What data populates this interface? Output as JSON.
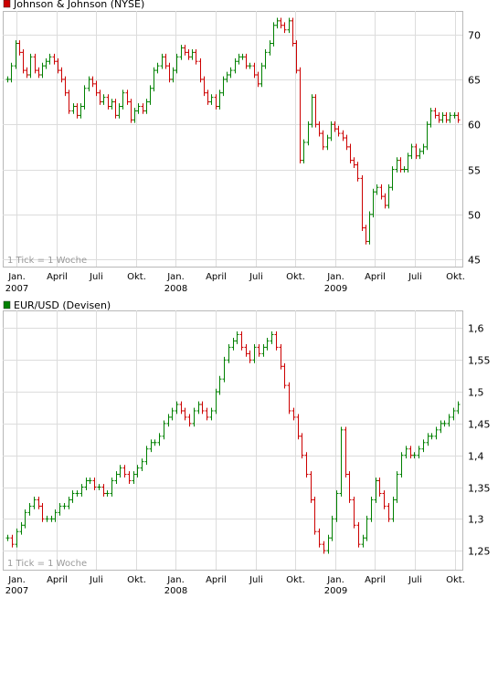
{
  "chart_data": [
    {
      "type": "ohlc",
      "title": "Johnson & Johnson (NYSE)",
      "legend_color": "#cc0000",
      "note": "1 Tick = 1 Woche",
      "y_ticks": [
        45,
        50,
        55,
        60,
        65,
        70
      ],
      "y_tick_labels": [
        "45",
        "50",
        "55",
        "60",
        "65",
        "70"
      ],
      "ylim": [
        44.2,
        72.6
      ],
      "x_ticks": [
        {
          "label": "Jan.",
          "year": "2007"
        },
        {
          "label": "April",
          "year": ""
        },
        {
          "label": "Juli",
          "year": ""
        },
        {
          "label": "Okt.",
          "year": ""
        },
        {
          "label": "Jan.",
          "year": "2008"
        },
        {
          "label": "April",
          "year": ""
        },
        {
          "label": "Juli",
          "year": ""
        },
        {
          "label": "Okt.",
          "year": ""
        },
        {
          "label": "Jan.",
          "year": "2009"
        },
        {
          "label": "April",
          "year": ""
        },
        {
          "label": "Juli",
          "year": ""
        },
        {
          "label": "Okt.",
          "year": ""
        }
      ],
      "up_color": "#008000",
      "down_color": "#cc0000",
      "series_close": [
        65.0,
        66.5,
        69.0,
        68.0,
        66.0,
        65.5,
        67.5,
        66.0,
        65.5,
        66.5,
        67.0,
        67.5,
        67.0,
        66.0,
        65.0,
        63.5,
        61.5,
        62.0,
        61.0,
        62.0,
        64.0,
        65.0,
        64.5,
        63.5,
        62.5,
        63.0,
        62.0,
        62.5,
        61.0,
        62.0,
        63.5,
        62.5,
        60.5,
        61.5,
        62.0,
        61.5,
        62.5,
        64.0,
        66.0,
        66.5,
        67.5,
        66.5,
        65.0,
        66.0,
        67.5,
        68.5,
        68.0,
        67.5,
        68.0,
        67.0,
        65.0,
        63.5,
        62.5,
        63.0,
        62.0,
        63.5,
        65.0,
        65.5,
        66.0,
        67.0,
        67.5,
        67.5,
        66.5,
        66.5,
        65.5,
        64.5,
        66.5,
        68.0,
        69.0,
        71.0,
        71.5,
        71.0,
        70.5,
        71.5,
        69.0,
        66.0,
        56.0,
        58.0,
        60.0,
        63.0,
        60.0,
        59.0,
        57.5,
        58.5,
        60.0,
        59.5,
        59.0,
        58.5,
        57.5,
        56.0,
        55.5,
        54.0,
        48.5,
        47.0,
        50.0,
        52.5,
        53.0,
        52.0,
        51.0,
        53.0,
        55.0,
        56.0,
        55.0,
        55.0,
        56.5,
        57.5,
        56.5,
        57.0,
        57.5,
        60.0,
        61.5,
        61.0,
        60.5,
        61.0,
        60.5,
        61.0,
        61.0,
        60.5
      ]
    },
    {
      "type": "ohlc",
      "title": "EUR/USD (Devisen)",
      "legend_color": "#008000",
      "note": "1 Tick = 1 Woche",
      "y_ticks": [
        1.25,
        1.3,
        1.35,
        1.4,
        1.45,
        1.5,
        1.55,
        1.6
      ],
      "y_tick_labels": [
        "1,25",
        "1,3",
        "1,35",
        "1,4",
        "1,45",
        "1,5",
        "1,55",
        "1,6"
      ],
      "ylim": [
        1.22,
        1.628
      ],
      "x_ticks": [
        {
          "label": "Jan.",
          "year": "2007"
        },
        {
          "label": "April",
          "year": ""
        },
        {
          "label": "Juli",
          "year": ""
        },
        {
          "label": "Okt.",
          "year": ""
        },
        {
          "label": "Jan.",
          "year": "2008"
        },
        {
          "label": "April",
          "year": ""
        },
        {
          "label": "Juli",
          "year": ""
        },
        {
          "label": "Okt.",
          "year": ""
        },
        {
          "label": "Jan.",
          "year": "2009"
        },
        {
          "label": "April",
          "year": ""
        },
        {
          "label": "Juli",
          "year": ""
        },
        {
          "label": "Okt.",
          "year": ""
        }
      ],
      "up_color": "#008000",
      "down_color": "#cc0000",
      "series_close": [
        1.27,
        1.26,
        1.28,
        1.29,
        1.31,
        1.32,
        1.33,
        1.32,
        1.3,
        1.3,
        1.3,
        1.31,
        1.32,
        1.32,
        1.33,
        1.34,
        1.34,
        1.35,
        1.36,
        1.36,
        1.35,
        1.35,
        1.34,
        1.34,
        1.36,
        1.37,
        1.38,
        1.37,
        1.36,
        1.37,
        1.38,
        1.39,
        1.41,
        1.42,
        1.42,
        1.43,
        1.45,
        1.46,
        1.47,
        1.48,
        1.47,
        1.46,
        1.45,
        1.47,
        1.48,
        1.47,
        1.46,
        1.47,
        1.5,
        1.52,
        1.55,
        1.57,
        1.58,
        1.59,
        1.57,
        1.56,
        1.55,
        1.57,
        1.56,
        1.57,
        1.58,
        1.59,
        1.57,
        1.54,
        1.51,
        1.47,
        1.46,
        1.43,
        1.4,
        1.37,
        1.33,
        1.28,
        1.26,
        1.25,
        1.27,
        1.3,
        1.34,
        1.44,
        1.37,
        1.33,
        1.29,
        1.26,
        1.27,
        1.3,
        1.33,
        1.36,
        1.34,
        1.32,
        1.3,
        1.33,
        1.37,
        1.4,
        1.41,
        1.4,
        1.4,
        1.41,
        1.42,
        1.43,
        1.43,
        1.44,
        1.45,
        1.45,
        1.46,
        1.47,
        1.48
      ]
    }
  ]
}
